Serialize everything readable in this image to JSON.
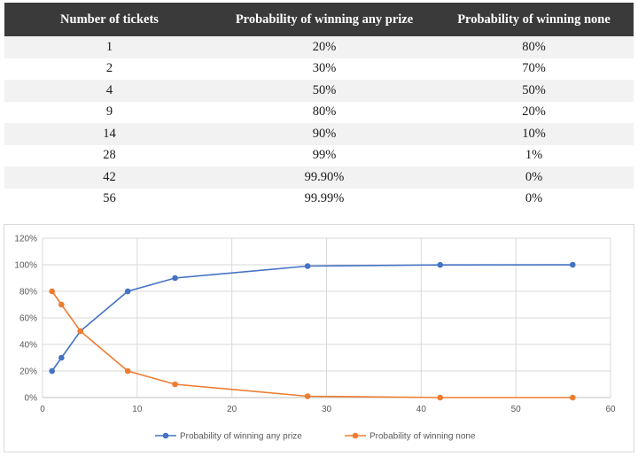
{
  "table": {
    "headers": [
      "Number of tickets",
      "Probability of winning any prize",
      "Probability of winning none"
    ],
    "rows": [
      [
        "1",
        "20%",
        "80%"
      ],
      [
        "2",
        "30%",
        "70%"
      ],
      [
        "4",
        "50%",
        "50%"
      ],
      [
        "9",
        "80%",
        "20%"
      ],
      [
        "14",
        "90%",
        "10%"
      ],
      [
        "28",
        "99%",
        "1%"
      ],
      [
        "42",
        "99.90%",
        "0%"
      ],
      [
        "56",
        "99.99%",
        "0%"
      ]
    ]
  },
  "chart_data": {
    "type": "line",
    "x": [
      1,
      2,
      4,
      9,
      14,
      28,
      42,
      56
    ],
    "series": [
      {
        "name": "Probability of winning any prize",
        "values": [
          20,
          30,
          50,
          80,
          90,
          99,
          99.9,
          99.99
        ],
        "color": "#4472c4"
      },
      {
        "name": "Probability of winning none",
        "values": [
          80,
          70,
          50,
          20,
          10,
          1,
          0,
          0
        ],
        "color": "#ed7d31"
      }
    ],
    "xlim": [
      0,
      60
    ],
    "ylim": [
      0,
      120
    ],
    "xticks": [
      "0",
      "10",
      "20",
      "30",
      "40",
      "50",
      "60"
    ],
    "yticks": [
      "0%",
      "20%",
      "40%",
      "60%",
      "80%",
      "100%",
      "120%"
    ],
    "grid": true,
    "legend": "bottom"
  }
}
